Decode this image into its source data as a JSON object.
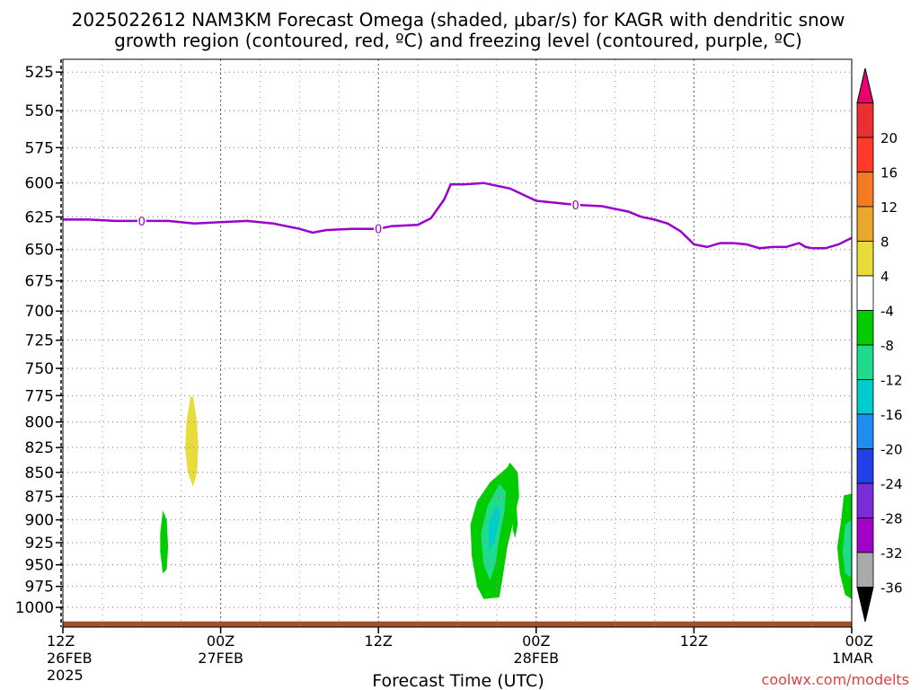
{
  "chart_data": {
    "type": "heatmap",
    "title_line1": "2025022612 NAM3KM Forecast Omega (shaded, μbar/s) for KAGR with dendritic snow",
    "title_line2": "growth region (contoured, red, ºC) and freezing level (contoured, purple, ºC)",
    "xlabel": "Forecast Time (UTC)",
    "credit": "coolwx.com/modelts",
    "x_range_hours": [
      0,
      60
    ],
    "y_range_hpa": [
      517,
      1024
    ],
    "y_scale": "log-pressure",
    "grid": true,
    "y_ticks": [
      525,
      550,
      575,
      600,
      625,
      650,
      675,
      700,
      725,
      750,
      775,
      800,
      825,
      850,
      875,
      900,
      925,
      950,
      975,
      1000
    ],
    "x_ticks": [
      {
        "hour": 0,
        "line1": "12Z",
        "line2": "26FEB",
        "line3": "2025"
      },
      {
        "hour": 12,
        "line1": "00Z",
        "line2": "27FEB",
        "line3": ""
      },
      {
        "hour": 24,
        "line1": "12Z",
        "line2": "",
        "line3": ""
      },
      {
        "hour": 36,
        "line1": "00Z",
        "line2": "28FEB",
        "line3": ""
      },
      {
        "hour": 48,
        "line1": "12Z",
        "line2": "",
        "line3": ""
      },
      {
        "hour": 60,
        "line1": "00Z",
        "line2": "1MAR",
        "line3": ""
      }
    ],
    "freezing_level": {
      "label": "0",
      "label_hours": [
        6,
        24,
        39
      ],
      "points": [
        [
          0,
          627
        ],
        [
          2,
          627
        ],
        [
          4,
          628
        ],
        [
          6,
          628
        ],
        [
          8,
          628
        ],
        [
          10,
          630
        ],
        [
          12,
          629
        ],
        [
          14,
          628
        ],
        [
          16,
          630
        ],
        [
          18,
          634
        ],
        [
          19,
          637
        ],
        [
          20,
          635
        ],
        [
          22,
          634
        ],
        [
          24,
          634
        ],
        [
          25,
          632
        ],
        [
          27,
          631
        ],
        [
          28,
          626
        ],
        [
          29,
          612
        ],
        [
          29.5,
          601
        ],
        [
          30.5,
          601
        ],
        [
          32,
          600
        ],
        [
          34,
          604
        ],
        [
          36,
          613
        ],
        [
          37,
          614
        ],
        [
          39,
          616
        ],
        [
          41,
          617
        ],
        [
          42,
          619
        ],
        [
          43,
          621
        ],
        [
          44,
          625
        ],
        [
          45,
          627
        ],
        [
          46,
          630
        ],
        [
          47,
          636
        ],
        [
          48,
          646
        ],
        [
          49,
          648
        ],
        [
          50,
          645
        ],
        [
          51,
          645
        ],
        [
          52,
          646
        ],
        [
          53,
          649
        ],
        [
          54,
          648
        ],
        [
          55,
          648
        ],
        [
          56,
          645
        ],
        [
          56.5,
          648
        ],
        [
          57,
          649
        ],
        [
          58,
          649
        ],
        [
          59,
          646
        ],
        [
          60,
          641
        ]
      ]
    },
    "ground_level_hpa_top": 1017,
    "omega_colorbar": {
      "levels": [
        "20",
        "16",
        "12",
        "8",
        "4",
        "-4",
        "-8",
        "-12",
        "-16",
        "-20",
        "-24",
        "-28",
        "-32",
        "-36"
      ],
      "colors": [
        "#e8006e",
        "#e83030",
        "#ff3a2a",
        "#f47a24",
        "#e8a82e",
        "#e8dc3a",
        "#ffffff",
        "#00cc00",
        "#1edc8c",
        "#00cccc",
        "#1e8ff0",
        "#2040e8",
        "#7a2cd8",
        "#a000c8",
        "#aaaaaa",
        "#000000"
      ]
    },
    "omega_regions": [
      {
        "value": 6,
        "color": "#e8dc3a",
        "points": [
          [
            9.7,
            776
          ],
          [
            9.4,
            800
          ],
          [
            9.3,
            825
          ],
          [
            9.5,
            850
          ],
          [
            9.9,
            865
          ],
          [
            10.2,
            850
          ],
          [
            10.3,
            825
          ],
          [
            10.2,
            800
          ],
          [
            9.9,
            776
          ]
        ]
      },
      {
        "value": -6,
        "color": "#00cc00",
        "points": [
          [
            7.6,
            890
          ],
          [
            7.4,
            915
          ],
          [
            7.4,
            935
          ],
          [
            7.6,
            960
          ],
          [
            7.9,
            955
          ],
          [
            8.0,
            930
          ],
          [
            7.9,
            900
          ]
        ]
      },
      {
        "value": -6,
        "color": "#00cc00",
        "points": [
          [
            34.3,
            885
          ],
          [
            34.2,
            910
          ],
          [
            34.4,
            920
          ],
          [
            34.6,
            905
          ],
          [
            34.5,
            885
          ]
        ]
      },
      {
        "value": -6,
        "color": "#00cc00",
        "points": [
          [
            33.8,
            845
          ],
          [
            32.5,
            860
          ],
          [
            31.5,
            880
          ],
          [
            31.0,
            905
          ],
          [
            31.1,
            940
          ],
          [
            31.5,
            975
          ],
          [
            32.0,
            990
          ],
          [
            33.2,
            988
          ],
          [
            33.5,
            960
          ],
          [
            33.8,
            930
          ],
          [
            34.3,
            900
          ],
          [
            34.7,
            875
          ],
          [
            34.6,
            850
          ],
          [
            34.0,
            840
          ]
        ]
      },
      {
        "value": -10,
        "color": "#1edc8c",
        "points": [
          [
            33.2,
            862
          ],
          [
            32.3,
            885
          ],
          [
            31.8,
            915
          ],
          [
            32.0,
            950
          ],
          [
            32.5,
            968
          ],
          [
            32.9,
            950
          ],
          [
            33.2,
            920
          ],
          [
            33.6,
            890
          ],
          [
            33.7,
            870
          ]
        ]
      },
      {
        "value": -14,
        "color": "#00cccc",
        "points": [
          [
            32.9,
            885
          ],
          [
            32.4,
            905
          ],
          [
            32.4,
            935
          ],
          [
            32.8,
            925
          ],
          [
            33.2,
            900
          ],
          [
            33.2,
            888
          ]
        ]
      },
      {
        "value": -6,
        "color": "#00cc00",
        "points": [
          [
            60,
            872
          ],
          [
            59.4,
            874
          ],
          [
            59.2,
            900
          ],
          [
            58.9,
            930
          ],
          [
            59.1,
            960
          ],
          [
            59.5,
            985
          ],
          [
            60,
            990
          ]
        ]
      },
      {
        "value": -10,
        "color": "#1edc8c",
        "points": [
          [
            60,
            900
          ],
          [
            59.5,
            905
          ],
          [
            59.3,
            935
          ],
          [
            59.5,
            960
          ],
          [
            60,
            965
          ]
        ]
      }
    ]
  }
}
